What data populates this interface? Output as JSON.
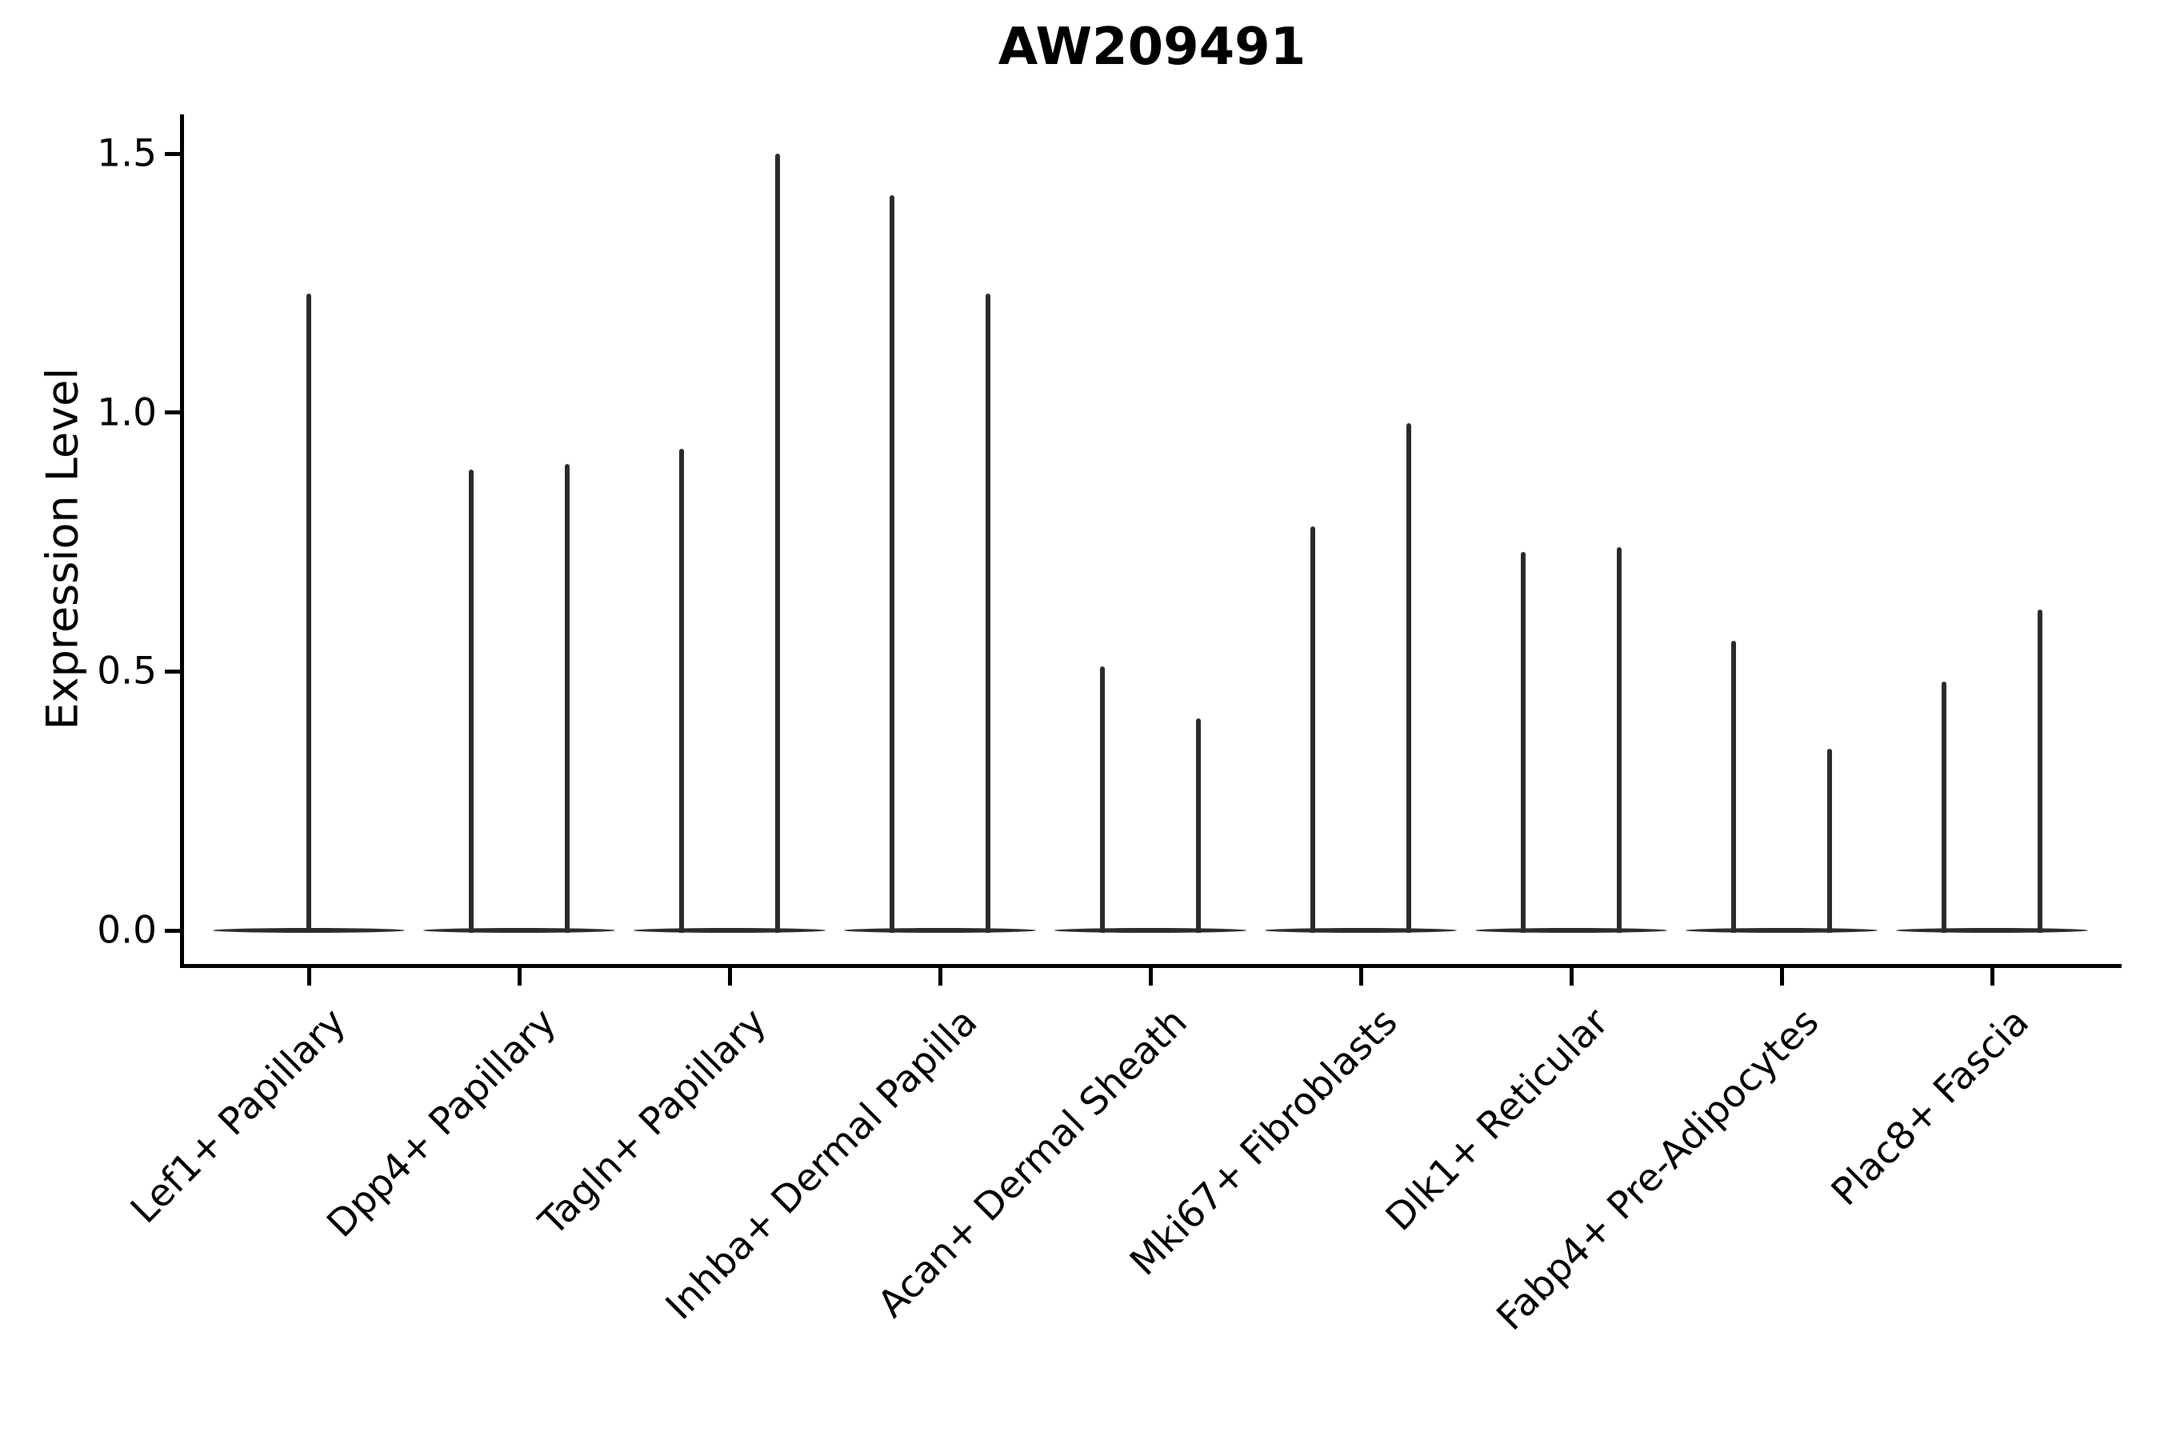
{
  "title": "AW209491",
  "chart_data": {
    "type": "violin",
    "title": "AW209491",
    "ylabel": "Expression Level",
    "xlabel": "",
    "ytick_labels": [
      "0.0",
      "0.5",
      "1.0",
      "1.5"
    ],
    "ytick_values": [
      0.0,
      0.5,
      1.0,
      1.5
    ],
    "ylim": [
      -0.07,
      1.58
    ],
    "grid": false,
    "legend_position": "none",
    "baseline_value": 0.0,
    "categories": [
      "Lef1+ Papillary",
      "Dpp4+ Papillary",
      "Tagln+ Papillary",
      "Inhba+ Dermal Papilla",
      "Acan+ Dermal Sheath",
      "Mki67+ Fibroblasts",
      "Dlk1+ Reticular",
      "Fabp4+ Pre-Adipocytes",
      "Plac8+ Fascia"
    ],
    "violins": [
      {
        "category": "Lef1+ Papillary",
        "spike_maxima": [
          1.23
        ]
      },
      {
        "category": "Dpp4+ Papillary",
        "spike_maxima": [
          0.89,
          0.9
        ]
      },
      {
        "category": "Tagln+ Papillary",
        "spike_maxima": [
          0.93,
          1.5
        ]
      },
      {
        "category": "Inhba+ Dermal Papilla",
        "spike_maxima": [
          1.42,
          1.23
        ]
      },
      {
        "category": "Acan+ Dermal Sheath",
        "spike_maxima": [
          0.51,
          0.41
        ]
      },
      {
        "category": "Mki67+ Fibroblasts",
        "spike_maxima": [
          0.78,
          0.98
        ]
      },
      {
        "category": "Dlk1+ Reticular",
        "spike_maxima": [
          0.73,
          0.74
        ]
      },
      {
        "category": "Fabp4+ Pre-Adipocytes",
        "spike_maxima": [
          0.56,
          0.35
        ]
      },
      {
        "category": "Plac8+ Fascia",
        "spike_maxima": [
          0.48,
          0.62
        ]
      }
    ],
    "colors": {
      "violin_line": "#2b2b2b",
      "axis": "#000000",
      "text": "#000000",
      "background": "#ffffff"
    }
  }
}
